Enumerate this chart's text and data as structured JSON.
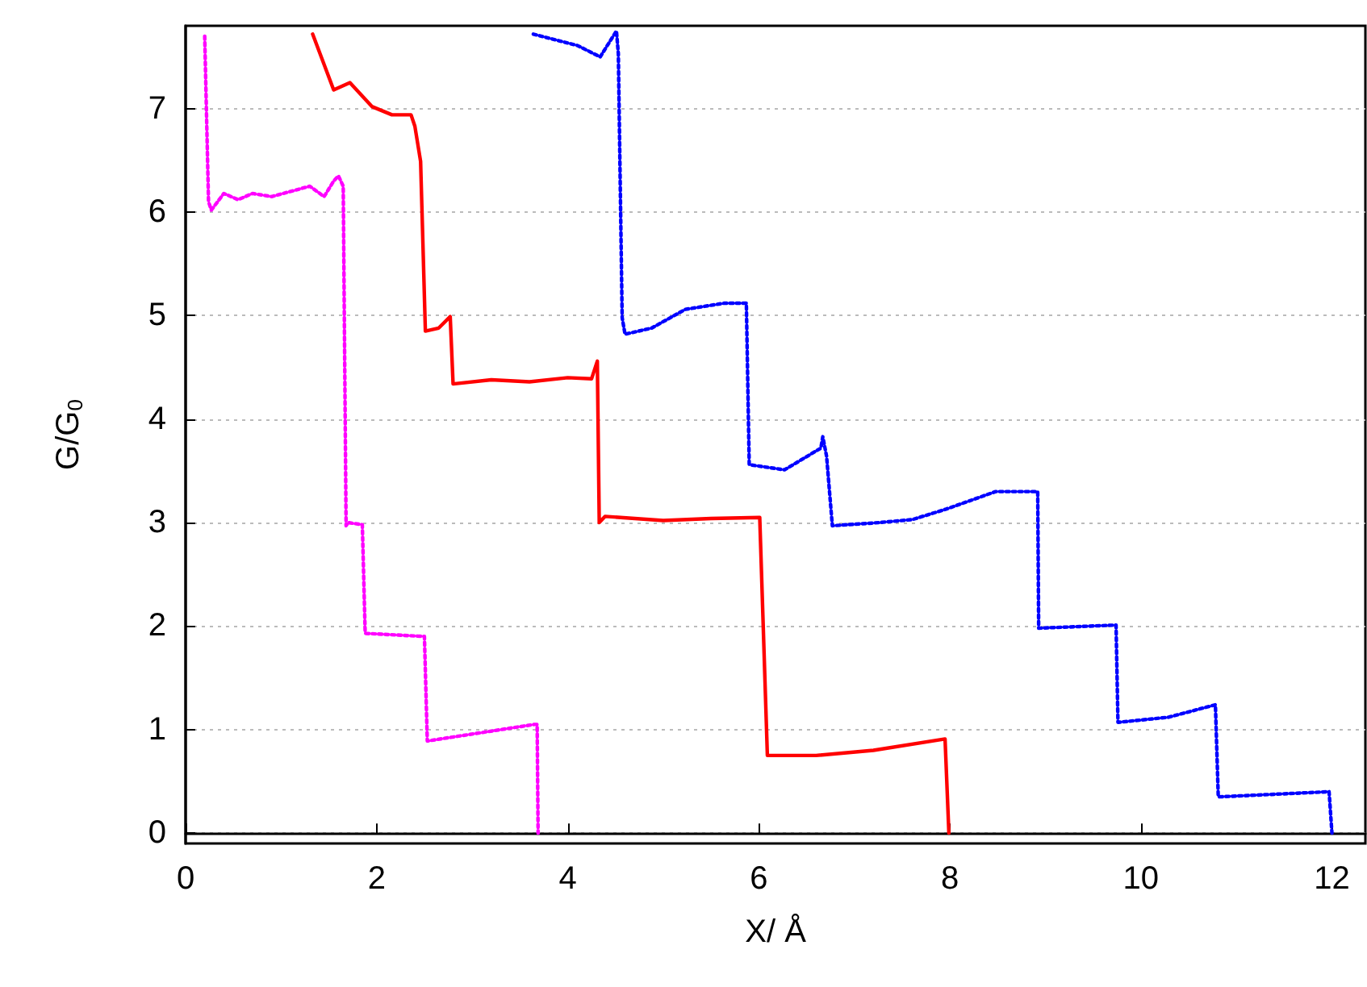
{
  "chart_data": {
    "type": "line",
    "xlabel": "X/ Å",
    "ylabel": "G/G$_{0}$",
    "xlim": [
      0,
      12.35
    ],
    "ylim": [
      -0.1,
      7.8
    ],
    "xticks": [
      0,
      2,
      4,
      6,
      8,
      10,
      12
    ],
    "yticks": [
      0,
      1,
      2,
      3,
      4,
      5,
      6,
      7
    ],
    "grid": "y",
    "marker": "none",
    "series": [
      {
        "color": "#ff00ff",
        "line_style": "dotted",
        "x": [
          0.2,
          0.24,
          0.27,
          0.4,
          0.55,
          0.7,
          0.9,
          1.1,
          1.3,
          1.45,
          1.55,
          1.6,
          1.65,
          1.68,
          1.7,
          1.85,
          1.88,
          2.5,
          2.53,
          3.65,
          3.68,
          3.69
        ],
        "values": [
          7.7,
          6.1,
          6.02,
          6.18,
          6.12,
          6.18,
          6.15,
          6.2,
          6.25,
          6.15,
          6.3,
          6.35,
          6.25,
          2.97,
          3.0,
          2.98,
          1.93,
          1.9,
          0.89,
          1.05,
          1.05,
          0
        ]
      },
      {
        "color": "#ff0000",
        "line_style": "solid",
        "x": [
          1.33,
          1.55,
          1.72,
          1.95,
          2.16,
          2.36,
          2.4,
          2.46,
          2.51,
          2.65,
          2.77,
          2.8,
          3.2,
          3.6,
          4.0,
          4.25,
          4.31,
          4.33,
          4.39,
          5.0,
          5.5,
          6.01,
          6.09,
          6.6,
          7.2,
          7.95,
          7.99
        ],
        "values": [
          7.72,
          7.18,
          7.25,
          7.02,
          6.94,
          6.94,
          6.83,
          6.49,
          4.85,
          4.88,
          4.99,
          4.34,
          4.38,
          4.36,
          4.4,
          4.39,
          4.56,
          3.0,
          3.06,
          3.02,
          3.04,
          3.05,
          0.75,
          0.75,
          0.8,
          0.91,
          0
        ]
      },
      {
        "color": "#0000ff",
        "line_style": "dotted",
        "x": [
          3.64,
          4.1,
          4.34,
          4.51,
          4.53,
          4.57,
          4.6,
          4.88,
          5.23,
          5.64,
          5.87,
          5.9,
          6.27,
          6.65,
          6.67,
          6.71,
          6.77,
          7.26,
          7.61,
          7.96,
          8.48,
          8.92,
          8.93,
          9.74,
          9.76,
          10.29,
          10.78,
          10.81,
          11.97,
          12.0
        ],
        "values": [
          7.72,
          7.61,
          7.5,
          7.75,
          7.53,
          4.98,
          4.82,
          4.88,
          5.06,
          5.12,
          5.12,
          3.56,
          3.51,
          3.72,
          3.83,
          3.64,
          2.97,
          3.0,
          3.03,
          3.13,
          3.3,
          3.3,
          1.98,
          2.01,
          1.07,
          1.12,
          1.24,
          0.35,
          0.4,
          0
        ]
      }
    ]
  }
}
